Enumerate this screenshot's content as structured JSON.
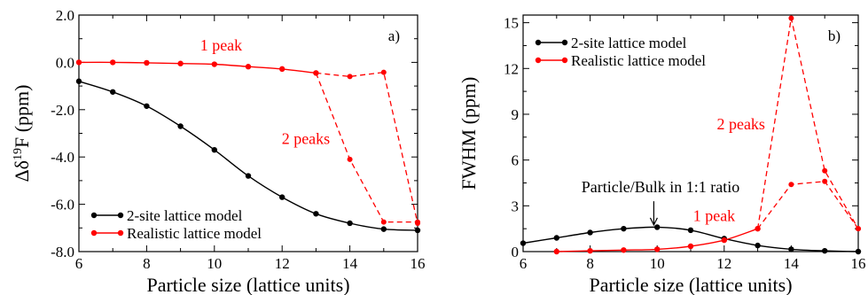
{
  "colors": {
    "black": "#000000",
    "red": "#ff0000"
  },
  "chart_data": [
    {
      "type": "line",
      "panel_label": "a)",
      "xlabel": "Particle size (lattice units)",
      "ylabel": "Δδ19F (ppm)",
      "ylabel_parts": {
        "pre": "Δδ",
        "sup": "19",
        "post": "F (ppm)"
      },
      "xlim": [
        6,
        16
      ],
      "ylim": [
        -8.0,
        2.0
      ],
      "xticks": [
        6,
        8,
        10,
        12,
        14,
        16
      ],
      "xtick_labels": [
        "6",
        "8",
        "10",
        "12",
        "14",
        "16"
      ],
      "yticks": [
        -8,
        -6,
        -4,
        -2,
        0,
        2
      ],
      "ytick_labels": [
        "-8.0",
        "-6.0",
        "-4.0",
        "-2.0",
        "0.0",
        "2.0"
      ],
      "legend_position": "bottom-left",
      "series": [
        {
          "name": "2-site lattice model",
          "color": "#000000",
          "style": "solid",
          "x": [
            6,
            7,
            8,
            9,
            10,
            11,
            12,
            13,
            14,
            15,
            16
          ],
          "y": [
            -0.8,
            -1.25,
            -1.85,
            -2.7,
            -3.7,
            -4.8,
            -5.7,
            -6.4,
            -6.8,
            -7.05,
            -7.1
          ]
        },
        {
          "name": "Realistic lattice model",
          "color": "#ff0000",
          "style": "solid",
          "x": [
            6,
            7,
            8,
            9,
            10,
            11,
            12,
            13
          ],
          "y": [
            0.0,
            0.0,
            -0.02,
            -0.05,
            -0.08,
            -0.18,
            -0.28,
            -0.45
          ]
        }
      ],
      "extra_lines": [
        {
          "color": "#ff0000",
          "style": "dashed",
          "x": [
            13,
            14,
            15,
            16
          ],
          "y": [
            -0.45,
            -0.6,
            -0.42,
            -6.8
          ]
        },
        {
          "color": "#ff0000",
          "style": "dashed",
          "x": [
            13,
            14,
            15,
            16
          ],
          "y": [
            -0.45,
            -4.1,
            -6.75,
            -6.75
          ]
        }
      ],
      "annotations": [
        {
          "text": "1 peak",
          "x": 10.2,
          "y": 0.5,
          "color": "#ff0000"
        },
        {
          "text": "2 peaks",
          "x": 12.7,
          "y": -3.45,
          "color": "#ff0000"
        }
      ]
    },
    {
      "type": "line",
      "panel_label": "b)",
      "xlabel": "Particle size (lattice units)",
      "ylabel": "FWHM (ppm)",
      "xlim": [
        6,
        16
      ],
      "ylim": [
        0,
        15.5
      ],
      "xticks": [
        6,
        8,
        10,
        12,
        14,
        16
      ],
      "xtick_labels": [
        "6",
        "8",
        "10",
        "12",
        "14",
        "16"
      ],
      "yticks": [
        0,
        3,
        6,
        9,
        12,
        15
      ],
      "ytick_labels": [
        "0",
        "3",
        "6",
        "9",
        "12",
        "15"
      ],
      "legend_position": "top-left",
      "series": [
        {
          "name": "2-site lattice model",
          "color": "#000000",
          "style": "solid",
          "x": [
            6,
            7,
            8,
            9,
            10,
            11,
            12,
            13,
            14,
            15,
            16
          ],
          "y": [
            0.55,
            0.9,
            1.25,
            1.5,
            1.6,
            1.4,
            0.85,
            0.4,
            0.15,
            0.05,
            0.0
          ]
        },
        {
          "name": "Realistic lattice model",
          "color": "#ff0000",
          "style": "solid",
          "x": [
            7,
            8,
            9,
            10,
            11,
            12,
            13
          ],
          "y": [
            0.0,
            0.05,
            0.1,
            0.15,
            0.35,
            0.75,
            1.5
          ]
        }
      ],
      "extra_lines": [
        {
          "color": "#ff0000",
          "style": "dashed",
          "x": [
            13,
            14,
            15,
            16
          ],
          "y": [
            1.5,
            15.3,
            5.3,
            1.5
          ]
        },
        {
          "color": "#ff0000",
          "style": "dashed",
          "x": [
            13,
            14,
            15,
            16
          ],
          "y": [
            1.5,
            4.4,
            4.6,
            1.5
          ]
        }
      ],
      "annotations": [
        {
          "text": "2 peaks",
          "x": 12.5,
          "y": 8.0,
          "color": "#ff0000"
        },
        {
          "text": "1 peak",
          "x": 11.7,
          "y": 2.0,
          "color": "#ff0000"
        },
        {
          "text": "Particle/Bulk in 1:1 ratio",
          "x": 10.1,
          "y": 3.9,
          "color": "#000000"
        }
      ],
      "arrow": {
        "from": [
          9.9,
          3.3
        ],
        "to": [
          9.9,
          1.75
        ]
      }
    }
  ]
}
